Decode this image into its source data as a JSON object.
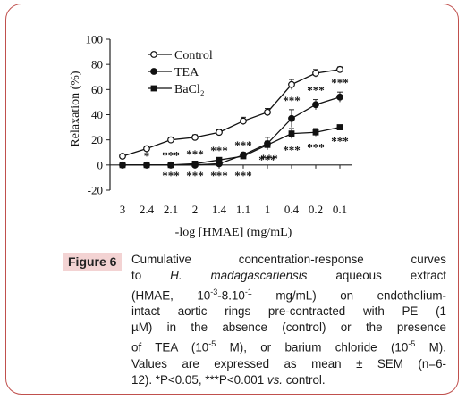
{
  "figure": {
    "label": "Figure 6",
    "caption_lines": [
      [
        "Cumulative concentration-response curves"
      ],
      [
        "to ",
        {
          "i": "H. madagascariensis"
        },
        " aqueous extract"
      ],
      [
        "(HMAE, 10",
        {
          "sup": "-3"
        },
        "-8.10",
        {
          "sup": "-1"
        },
        " mg/mL) on endothelium-"
      ],
      [
        "intact aortic rings pre-contracted with PE (1"
      ],
      [
        "µM) in the absence (control) or the presence"
      ],
      [
        "of TEA (10",
        {
          "sup": "-5"
        },
        " M), or barium chloride (10",
        {
          "sup": "-5"
        },
        " M)."
      ],
      [
        "Values are expressed as mean ± SEM (n=6-"
      ],
      [
        "12). *P<0.05, ***P<0.001 ",
        {
          "i": "vs."
        },
        " control."
      ]
    ]
  },
  "chart_data": {
    "type": "line",
    "title": "",
    "xlabel": "-log [HMAE] (mg/mL)",
    "ylabel": "Relaxation (%)",
    "categories": [
      "3",
      "2.4",
      "2.1",
      "2",
      "1.4",
      "1.1",
      "1",
      "0.4",
      "0.2",
      "0.1"
    ],
    "ylim": [
      -20,
      100
    ],
    "yticks": [
      -20,
      0,
      20,
      40,
      60,
      80,
      100
    ],
    "grid": false,
    "legend_position": "top-left",
    "series": [
      {
        "name": "Control",
        "marker": "open-circle",
        "values": [
          7,
          13,
          20,
          22,
          26,
          35,
          42,
          64,
          73,
          76
        ],
        "errors": [
          1,
          2,
          2,
          2,
          2,
          3,
          3,
          4,
          3,
          2
        ]
      },
      {
        "name": "TEA",
        "marker": "filled-circle",
        "values": [
          0,
          0,
          0,
          0,
          1,
          8,
          17,
          37,
          48,
          54
        ],
        "errors": [
          0,
          0,
          0,
          1,
          1,
          2,
          5,
          7,
          4,
          4
        ],
        "significance": [
          "",
          "",
          "***",
          "***",
          "***",
          "***",
          "***",
          "***",
          "***",
          "***"
        ]
      },
      {
        "name": "BaCl₂",
        "marker": "filled-square",
        "values": [
          0,
          0,
          0,
          1,
          4,
          7,
          16,
          25,
          26,
          30
        ],
        "errors": [
          0,
          0,
          0,
          1,
          1,
          2,
          3,
          4,
          3,
          2
        ],
        "significance": [
          "",
          "*",
          "***",
          "***",
          "***",
          "***",
          "***",
          "***",
          "***",
          "***"
        ]
      }
    ]
  }
}
